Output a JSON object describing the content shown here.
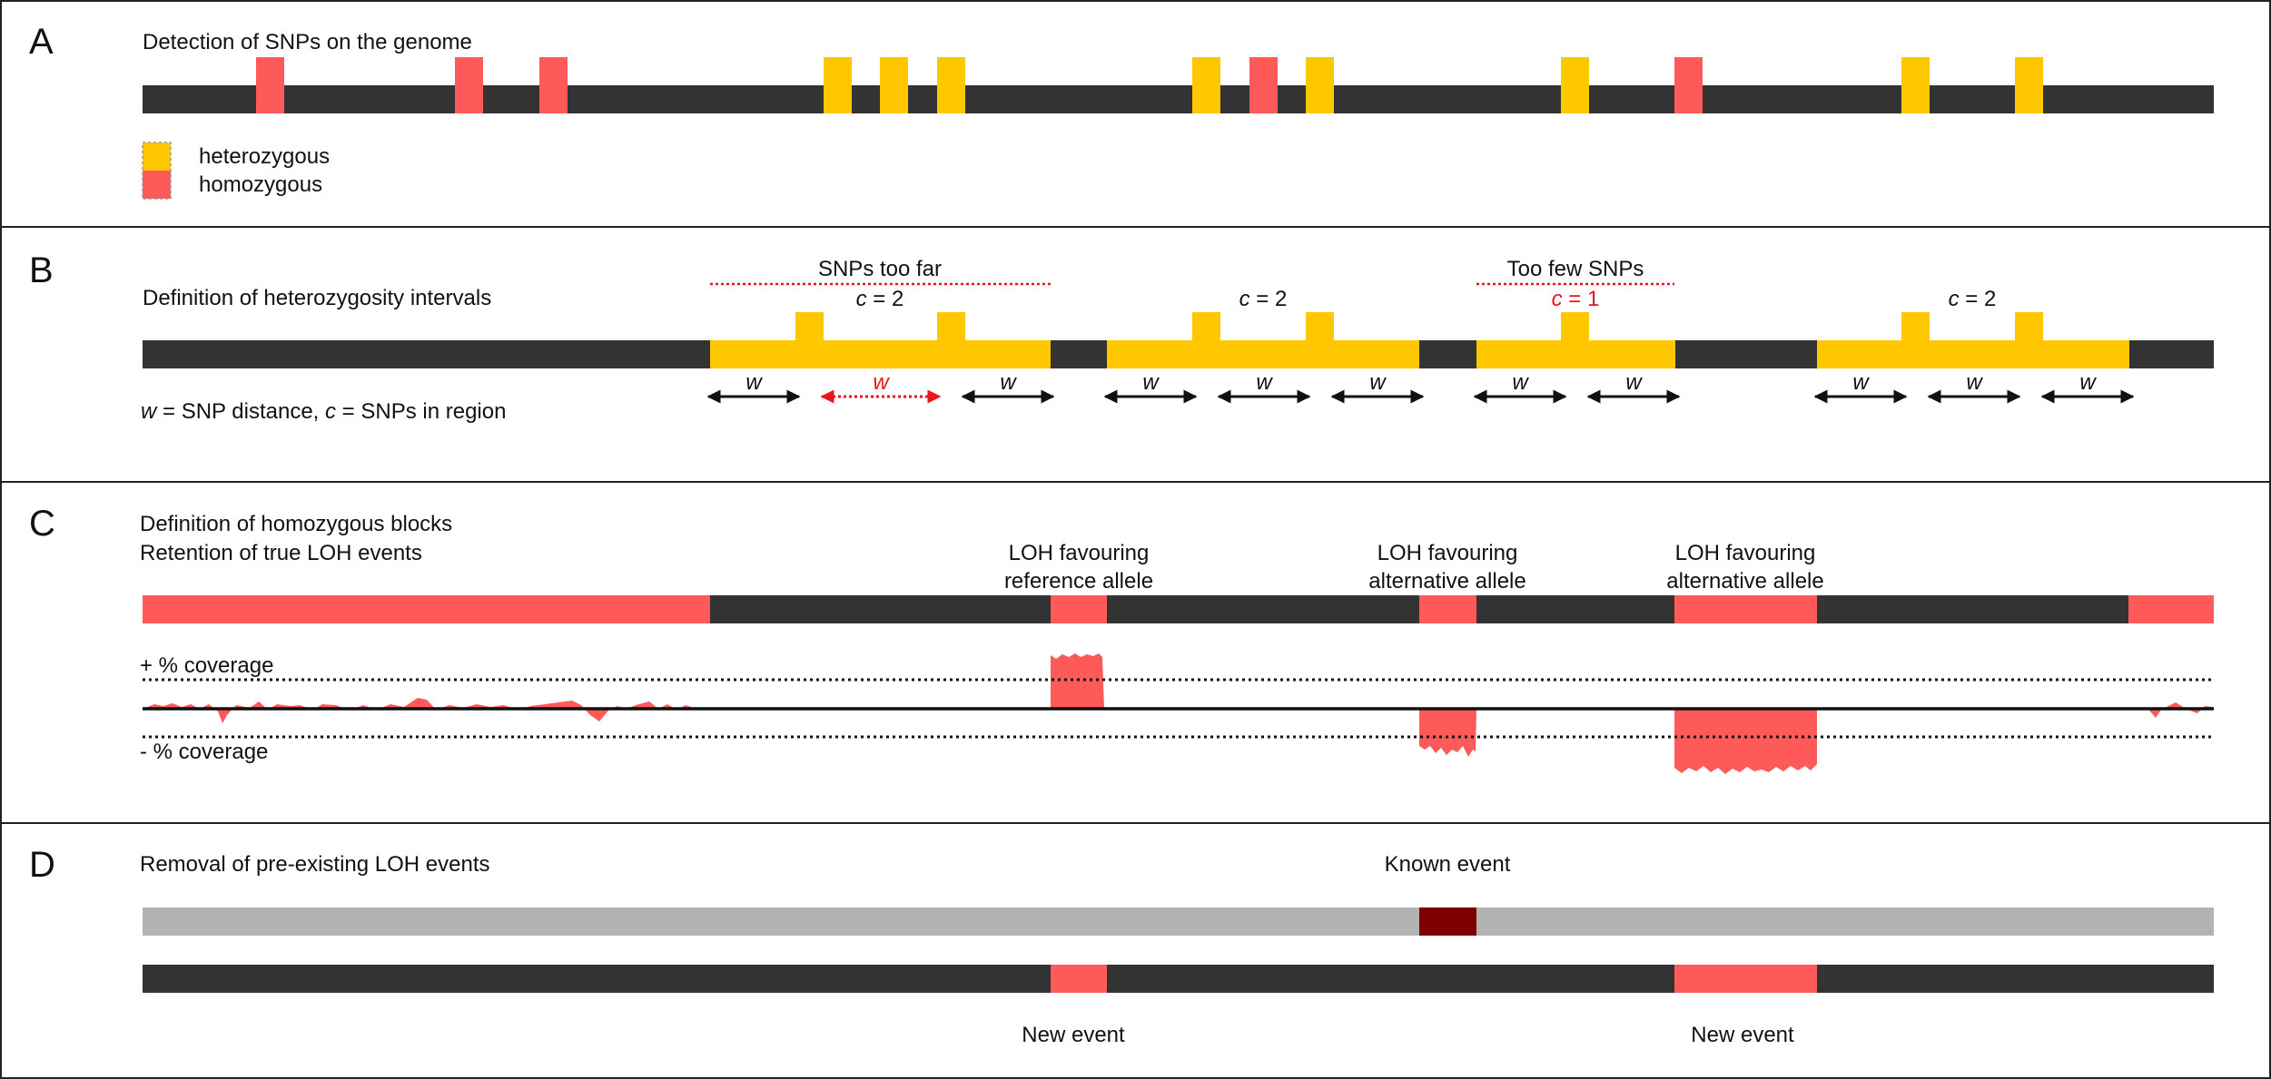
{
  "colors": {
    "genome": "#333333",
    "heterozygous": "#ffc700",
    "homozygous": "#ff5a5a",
    "reference_genome": "#b3b3b3",
    "known_event": "#7d0000",
    "arrow": "#111111",
    "arrow_highlight": "#e8151b"
  },
  "panel_a": {
    "letter": "A",
    "title": "Detection of SNPs on the genome",
    "legend": {
      "heterozygous": "heterozygous",
      "homozygous": "homozygous"
    },
    "snp_order": [
      "hom",
      "hom",
      "hom",
      "het",
      "het",
      "het",
      "het",
      "hom",
      "het",
      "het",
      "hom",
      "het",
      "het"
    ]
  },
  "panel_b": {
    "letter": "B",
    "title": "Definition of heterozygosity intervals",
    "caption": {
      "w": "w",
      "w_text": " = SNP distance, ",
      "c": "c",
      "c_text": " = SNPs in region"
    },
    "w_label": "w",
    "regions": [
      {
        "heading": "SNPs too far",
        "count_var": "c",
        "count_text": " = 2",
        "flagged": true,
        "count_flagged": false,
        "snps": 2
      },
      {
        "heading": "",
        "count_var": "c",
        "count_text": " = 2",
        "flagged": false,
        "count_flagged": false,
        "snps": 2
      },
      {
        "heading": "Too few SNPs",
        "count_var": "c",
        "count_text": " = 1",
        "flagged": true,
        "count_flagged": true,
        "snps": 1
      },
      {
        "heading": "",
        "count_var": "c",
        "count_text": " = 2",
        "flagged": false,
        "count_flagged": false,
        "snps": 2
      }
    ]
  },
  "panel_c": {
    "letter": "C",
    "title_line1": "Definition of homozygous blocks",
    "title_line2": "Retention of true LOH events",
    "plus_coverage": "+ % coverage",
    "minus_coverage": "- % coverage",
    "events": [
      {
        "line1": "LOH favouring",
        "line2": "reference allele",
        "coverage": "gain"
      },
      {
        "line1": "LOH favouring",
        "line2": "alternative allele",
        "coverage": "loss"
      },
      {
        "line1": "LOH favouring",
        "line2": "alternative allele",
        "coverage": "loss"
      }
    ]
  },
  "panel_d": {
    "letter": "D",
    "title": "Removal of pre-existing LOH events",
    "known_event": "Known event",
    "new_event_1": "New event",
    "new_event_2": "New event"
  }
}
